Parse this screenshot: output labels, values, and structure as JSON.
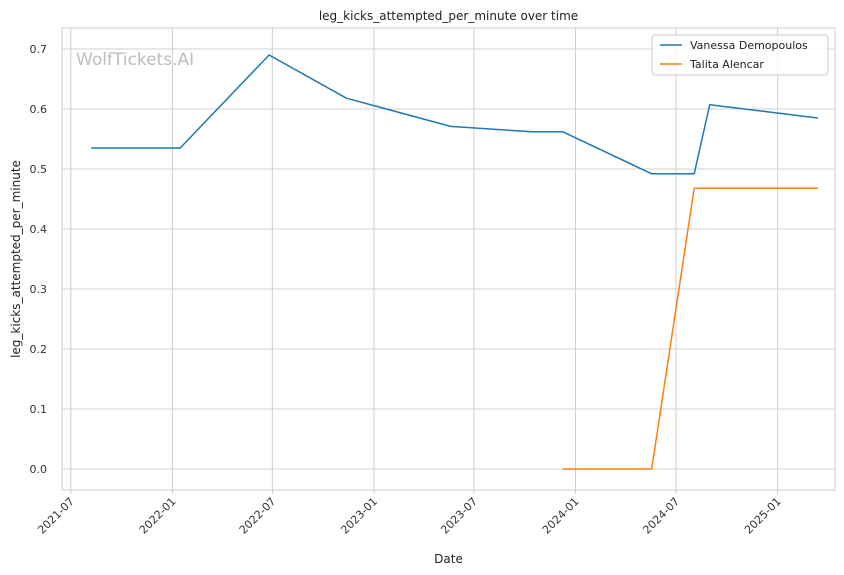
{
  "chart_data": {
    "type": "line",
    "title": "leg_kicks_attempted_per_minute over time",
    "xlabel": "Date",
    "ylabel": "leg_kicks_attempted_per_minute",
    "watermark": "WolfTickets.AI",
    "x_ticks": [
      "2021-07",
      "2022-01",
      "2022-07",
      "2023-01",
      "2023-07",
      "2024-01",
      "2024-07",
      "2025-01"
    ],
    "y_ticks": [
      "0.0",
      "0.1",
      "0.2",
      "0.3",
      "0.4",
      "0.5",
      "0.6",
      "0.7"
    ],
    "xlim": [
      "2021-06-15",
      "2025-04-15"
    ],
    "ylim": [
      -0.035,
      0.735
    ],
    "grid": true,
    "legend_position": "top-right",
    "series": [
      {
        "name": "Vanessa Demopoulos",
        "color": "#1f77b4",
        "points": [
          {
            "x": "2021-08-07",
            "y": 0.535
          },
          {
            "x": "2022-01-15",
            "y": 0.535
          },
          {
            "x": "2022-06-25",
            "y": 0.69
          },
          {
            "x": "2022-11-12",
            "y": 0.618
          },
          {
            "x": "2023-05-20",
            "y": 0.571
          },
          {
            "x": "2023-10-14",
            "y": 0.562
          },
          {
            "x": "2023-12-09",
            "y": 0.562
          },
          {
            "x": "2024-05-18",
            "y": 0.492
          },
          {
            "x": "2024-08-03",
            "y": 0.492
          },
          {
            "x": "2024-08-31",
            "y": 0.607
          },
          {
            "x": "2025-03-15",
            "y": 0.585
          }
        ]
      },
      {
        "name": "Talita Alencar",
        "color": "#ff7f0e",
        "points": [
          {
            "x": "2023-12-09",
            "y": 0.0
          },
          {
            "x": "2024-05-18",
            "y": 0.0
          },
          {
            "x": "2024-08-03",
            "y": 0.468
          },
          {
            "x": "2025-03-15",
            "y": 0.468
          }
        ]
      }
    ]
  }
}
